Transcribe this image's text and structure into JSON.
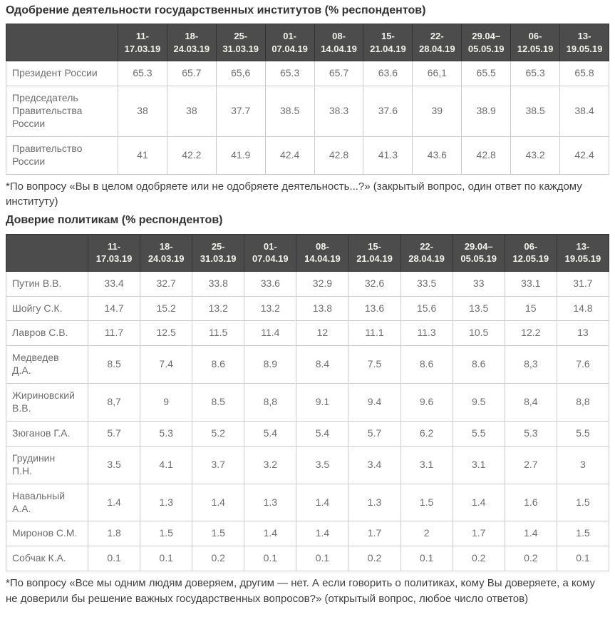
{
  "colors": {
    "header_background": "#4c4c4c",
    "header_text": "#f2f2ec",
    "header_border": "#333333",
    "body_border": "#cccccc",
    "body_text": "#6e6e6e",
    "title_text": "#333333",
    "footnote_text": "#3f3f3f"
  },
  "approval": {
    "title": "Одобрение деятельности государственных институтов (% респондентов)",
    "columns": [
      "11-\n17.03.19",
      "18-\n24.03.19",
      "25-\n31.03.19",
      "01-\n07.04.19",
      "08-\n14.04.19",
      "15-\n21.04.19",
      "22-\n28.04.19",
      "29.04–\n05.05.19",
      "06-\n12.05.19",
      "13-\n19.05.19"
    ],
    "rows": [
      {
        "name": "Президент России",
        "values": [
          "65.3",
          "65.7",
          "65,6",
          "65.3",
          "65.7",
          "63.6",
          "66,1",
          "65.5",
          "65.3",
          "65.8"
        ]
      },
      {
        "name": "Председатель\nПравительства\nРоссии",
        "values": [
          "38",
          "38",
          "37.7",
          "38.5",
          "38.3",
          "37.6",
          "39",
          "38.9",
          "38.5",
          "38.4"
        ]
      },
      {
        "name": "Правительство\nРоссии",
        "values": [
          "41",
          "42.2",
          "41.9",
          "42.4",
          "42.8",
          "41.3",
          "43.6",
          "42.8",
          "43.2",
          "42.4"
        ]
      }
    ],
    "footnote": "*По вопросу «Вы в целом одобряете или не одобряете деятельность...?» (закрытый вопрос, один ответ по каждому институту)"
  },
  "trust": {
    "title": "Доверие политикам (% респондентов)",
    "columns": [
      "11-\n17.03.19",
      "18-\n24.03.19",
      "25-\n31.03.19",
      "01-\n07.04.19",
      "08-\n14.04.19",
      "15-\n21.04.19",
      "22-\n28.04.19",
      "29.04–\n05.05.19",
      "06-\n12.05.19",
      "13-\n19.05.19"
    ],
    "rows": [
      {
        "name": "Путин В.В.",
        "values": [
          "33.4",
          "32.7",
          "33.8",
          "33.6",
          "32.9",
          "32.6",
          "33.5",
          "33",
          "33.1",
          "31.7"
        ]
      },
      {
        "name": "Шойгу С.К.",
        "values": [
          "14.7",
          "15.2",
          "13.2",
          "13.2",
          "13.8",
          "13.6",
          "15.6",
          "13.5",
          "15",
          "14.8"
        ]
      },
      {
        "name": "Лавров С.В.",
        "values": [
          "11.7",
          "12.5",
          "11.5",
          "11.4",
          "12",
          "11.1",
          "11.3",
          "10.5",
          "12.2",
          "13"
        ]
      },
      {
        "name": "Медведев\nД.А.",
        "values": [
          "8.5",
          "7.4",
          "8.6",
          "8.9",
          "8.4",
          "7.5",
          "8.6",
          "8.6",
          "8,3",
          "7.6"
        ]
      },
      {
        "name": "Жириновский\nВ.В.",
        "values": [
          "8,7",
          "9",
          "8.5",
          "8,8",
          "9.1",
          "9.4",
          "9.6",
          "9.5",
          "8,4",
          "8,8"
        ]
      },
      {
        "name": "Зюганов Г.А.",
        "values": [
          "5.7",
          "5.3",
          "5.2",
          "5.4",
          "5.4",
          "5.7",
          "6.2",
          "5.5",
          "5.3",
          "5.5"
        ]
      },
      {
        "name": "Грудинин\nП.Н.",
        "values": [
          "3.5",
          "4.1",
          "3.7",
          "3.2",
          "3.5",
          "3.4",
          "3.1",
          "3.1",
          "2.7",
          "3"
        ]
      },
      {
        "name": "Навальный\nА.А.",
        "values": [
          "1.4",
          "1.3",
          "1.4",
          "1.3",
          "1.4",
          "1.3",
          "1.5",
          "1.4",
          "1.6",
          "1.5"
        ]
      },
      {
        "name": "Миронов С.М.",
        "values": [
          "1.8",
          "1.5",
          "1.5",
          "1.4",
          "1.4",
          "1.7",
          "2",
          "1.7",
          "1.4",
          "1.5"
        ]
      },
      {
        "name": "Собчак К.А.",
        "values": [
          "0.1",
          "0.1",
          "0.2",
          "0.1",
          "0.1",
          "0.2",
          "0.1",
          "0.2",
          "0.2",
          "0.1"
        ]
      }
    ],
    "footnote": "*По вопросу «Все мы одним людям доверяем, другим — нет. А если говорить о политиках, кому Вы доверяете, а кому не доверили бы решение важных государственных вопросов?» (открытый вопрос, любое число ответов)"
  }
}
